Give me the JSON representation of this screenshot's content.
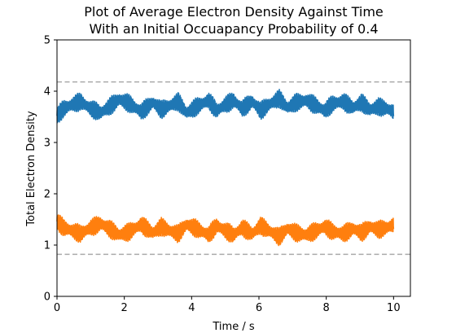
{
  "chart_data": {
    "type": "line",
    "title_lines": [
      "Plot of Average Electron Density Against Time",
      "With an Initial Occuapancy Probability of 0.4"
    ],
    "xlabel": "Time / s",
    "ylabel": "Total Electron Density",
    "xlim": [
      0,
      10.5
    ],
    "ylim": [
      0,
      5
    ],
    "x_ticks": [
      0,
      2,
      4,
      6,
      8,
      10
    ],
    "y_ticks": [
      0,
      1,
      2,
      3,
      4,
      5
    ],
    "grid": false,
    "legend": "none",
    "series": [
      {
        "color": "#1f77b4",
        "x_range": [
          0,
          10
        ],
        "centerline": {
          "x": [
            0,
            0.2,
            0.45,
            0.7,
            1.0,
            1.3,
            1.6,
            1.85,
            2.15,
            2.5,
            2.85,
            3.1,
            3.35,
            3.6,
            3.85,
            4.15,
            4.5,
            4.75,
            5.0,
            5.25,
            5.5,
            5.8,
            6.05,
            6.3,
            6.6,
            6.85,
            7.1,
            7.4,
            7.7,
            7.95,
            8.2,
            8.5,
            8.8,
            9.05,
            9.3,
            9.55,
            9.8,
            10.0
          ],
          "y": [
            3.52,
            3.66,
            3.74,
            3.8,
            3.66,
            3.58,
            3.72,
            3.84,
            3.76,
            3.6,
            3.78,
            3.64,
            3.72,
            3.8,
            3.58,
            3.7,
            3.82,
            3.62,
            3.74,
            3.82,
            3.66,
            3.8,
            3.62,
            3.74,
            3.86,
            3.68,
            3.78,
            3.82,
            3.72,
            3.62,
            3.76,
            3.8,
            3.68,
            3.78,
            3.64,
            3.7,
            3.66,
            3.6
          ]
        },
        "oscillation_amplitude": 0.18
      },
      {
        "color": "#ff7f0e",
        "x_range": [
          0,
          10
        ],
        "centerline": {
          "x": [
            0,
            0.2,
            0.45,
            0.7,
            1.0,
            1.3,
            1.6,
            1.85,
            2.15,
            2.5,
            2.85,
            3.1,
            3.35,
            3.6,
            3.85,
            4.15,
            4.5,
            4.75,
            5.0,
            5.25,
            5.5,
            5.8,
            6.05,
            6.3,
            6.6,
            6.85,
            7.1,
            7.4,
            7.7,
            7.95,
            8.2,
            8.5,
            8.8,
            9.05,
            9.3,
            9.55,
            9.8,
            10.0
          ],
          "y": [
            1.46,
            1.34,
            1.28,
            1.22,
            1.34,
            1.42,
            1.3,
            1.2,
            1.26,
            1.4,
            1.24,
            1.36,
            1.28,
            1.22,
            1.4,
            1.32,
            1.2,
            1.38,
            1.28,
            1.2,
            1.34,
            1.22,
            1.38,
            1.28,
            1.16,
            1.32,
            1.24,
            1.2,
            1.28,
            1.36,
            1.26,
            1.22,
            1.32,
            1.24,
            1.36,
            1.3,
            1.34,
            1.4
          ]
        },
        "oscillation_amplitude": 0.18
      }
    ],
    "reference_lines": [
      {
        "y": 4.18,
        "color": "#aaaaaa",
        "style": "dashed"
      },
      {
        "y": 0.82,
        "color": "#aaaaaa",
        "style": "dashed"
      }
    ]
  }
}
